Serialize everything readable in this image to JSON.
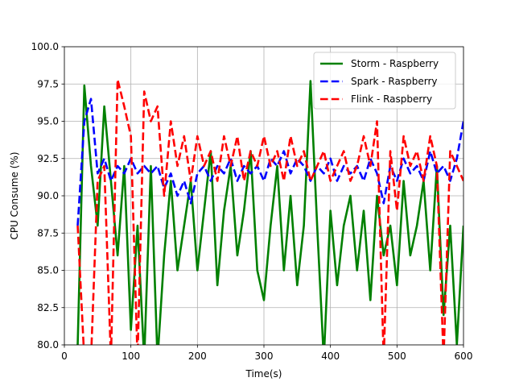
{
  "chart_data": {
    "type": "line",
    "xlabel": "Time(s)",
    "ylabel": "CPU Consume (%)",
    "x": [
      20,
      30,
      40,
      50,
      60,
      70,
      80,
      90,
      100,
      110,
      120,
      130,
      140,
      150,
      160,
      170,
      180,
      190,
      200,
      210,
      220,
      230,
      240,
      250,
      260,
      270,
      280,
      290,
      300,
      310,
      320,
      330,
      340,
      350,
      360,
      370,
      380,
      390,
      400,
      410,
      420,
      430,
      440,
      450,
      460,
      470,
      480,
      490,
      500,
      510,
      520,
      530,
      540,
      550,
      560,
      570,
      580,
      590,
      600
    ],
    "series": [
      {
        "name": "Storm - Raspberry",
        "color": "#008000",
        "linestyle": "solid",
        "values": [
          80,
          97.4,
          92,
          88,
          96,
          91,
          86,
          92,
          81,
          88,
          79,
          92,
          79,
          86,
          91,
          85,
          88,
          91,
          85,
          89,
          93,
          84,
          89,
          92,
          86,
          89,
          93,
          85,
          83,
          88,
          92,
          85,
          90,
          84,
          88,
          97.7,
          88,
          79,
          89,
          84,
          88,
          90,
          85,
          89,
          83,
          90,
          86,
          88,
          84,
          91,
          86,
          88,
          91,
          85,
          92,
          82,
          88,
          80,
          88
        ]
      },
      {
        "name": "Spark - Raspberry",
        "color": "#0000ff",
        "linestyle": "dashed",
        "values": [
          88,
          95,
          96.5,
          91.5,
          92.5,
          91,
          92,
          91.5,
          92.5,
          91.5,
          92,
          91.5,
          92,
          90.5,
          91.5,
          90,
          91,
          89.5,
          91.5,
          92,
          91,
          92,
          91.5,
          92.5,
          91,
          92,
          91.5,
          92,
          91,
          92.5,
          92,
          93,
          91.5,
          92.5,
          92,
          91,
          92,
          91.5,
          92.5,
          91,
          92,
          91.5,
          92,
          91,
          92.5,
          91.5,
          89.5,
          92,
          91,
          92.5,
          91.5,
          92,
          91,
          93,
          91.5,
          92,
          91,
          92.5,
          95
        ]
      },
      {
        "name": "Flink - Raspberry",
        "color": "#ff0000",
        "linestyle": "dashed",
        "values": [
          88,
          79,
          79,
          91,
          92,
          79,
          97.8,
          96,
          94,
          79,
          97,
          95,
          96,
          90,
          95,
          92,
          94,
          91,
          94,
          92,
          93,
          91,
          94,
          92,
          94,
          91,
          93,
          92,
          94,
          92,
          93,
          91,
          94,
          92,
          93,
          91,
          92,
          93,
          91,
          92,
          93,
          91,
          92,
          94,
          92,
          95,
          79,
          93,
          89,
          94,
          92,
          93,
          91,
          94,
          92,
          79,
          93,
          92,
          91
        ]
      }
    ],
    "xlim": [
      0,
      600
    ],
    "xticks": [
      0,
      100,
      200,
      300,
      400,
      500,
      600
    ],
    "ylim": [
      80,
      100
    ],
    "yticks": [
      {
        "value": 80,
        "label": "80.0"
      },
      82.5,
      {
        "value": 85,
        "label": "85.0"
      },
      87.5,
      {
        "value": 90,
        "label": "90.0"
      },
      92.5,
      {
        "value": 95,
        "label": "95.0"
      },
      97.5,
      {
        "value": 100,
        "label": "100.0"
      }
    ],
    "grid": true,
    "legend": "upper-right"
  }
}
